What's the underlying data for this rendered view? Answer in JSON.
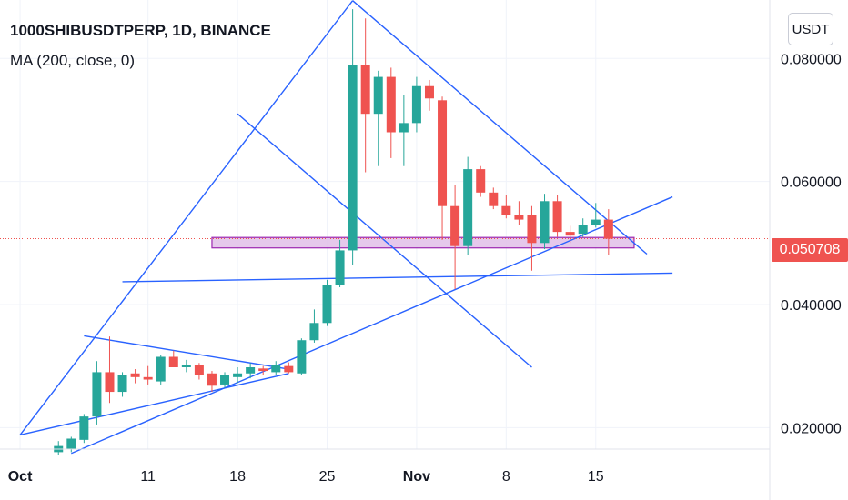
{
  "header": {
    "symbol": "1000SHIBUSDTPERP, 1D, BINANCE",
    "indicator": "MA (200, close, 0)"
  },
  "axis": {
    "unit_button": "USDT",
    "last_price_badge": "0.050708"
  },
  "colors": {
    "up": "#26a69a",
    "down": "#ef5350",
    "trendline": "#2962ff",
    "zone_fill": "#e1bee7",
    "zone_stroke": "#9c27b0",
    "grid": "#f0f3fa",
    "last_price_line": "#ef5350"
  },
  "chart_data": {
    "type": "candlestick",
    "y_range": [
      0.0165,
      0.0895
    ],
    "y_ticks": [
      "0.020000",
      "0.040000",
      "0.060000",
      "0.080000"
    ],
    "y_tick_values": [
      0.02,
      0.04,
      0.06,
      0.08
    ],
    "x_ticks": [
      {
        "label": "Oct",
        "day": 1,
        "bold": true
      },
      {
        "label": "11",
        "day": 11,
        "bold": false
      },
      {
        "label": "18",
        "day": 18,
        "bold": false
      },
      {
        "label": "25",
        "day": 25,
        "bold": false
      },
      {
        "label": "Nov",
        "day": 32,
        "bold": true
      },
      {
        "label": "8",
        "day": 39,
        "bold": false
      },
      {
        "label": "15",
        "day": 46,
        "bold": false
      }
    ],
    "last_price": 0.050708,
    "candles": [
      {
        "day": 4,
        "o": 0.016,
        "h": 0.0178,
        "l": 0.0155,
        "c": 0.017
      },
      {
        "day": 5,
        "o": 0.0165,
        "h": 0.0185,
        "l": 0.016,
        "c": 0.0182
      },
      {
        "day": 6,
        "o": 0.018,
        "h": 0.0222,
        "l": 0.0175,
        "c": 0.0218
      },
      {
        "day": 7,
        "o": 0.0218,
        "h": 0.0308,
        "l": 0.0205,
        "c": 0.029
      },
      {
        "day": 8,
        "o": 0.029,
        "h": 0.0348,
        "l": 0.024,
        "c": 0.0258
      },
      {
        "day": 9,
        "o": 0.0258,
        "h": 0.029,
        "l": 0.025,
        "c": 0.0285
      },
      {
        "day": 10,
        "o": 0.0288,
        "h": 0.0295,
        "l": 0.0272,
        "c": 0.0282
      },
      {
        "day": 11,
        "o": 0.0282,
        "h": 0.03,
        "l": 0.027,
        "c": 0.0278
      },
      {
        "day": 12,
        "o": 0.0275,
        "h": 0.0318,
        "l": 0.027,
        "c": 0.0315
      },
      {
        "day": 13,
        "o": 0.0315,
        "h": 0.0325,
        "l": 0.03,
        "c": 0.0298
      },
      {
        "day": 14,
        "o": 0.0298,
        "h": 0.031,
        "l": 0.029,
        "c": 0.0302
      },
      {
        "day": 15,
        "o": 0.0302,
        "h": 0.0305,
        "l": 0.0278,
        "c": 0.0285
      },
      {
        "day": 16,
        "o": 0.0288,
        "h": 0.0292,
        "l": 0.0258,
        "c": 0.0268
      },
      {
        "day": 17,
        "o": 0.027,
        "h": 0.029,
        "l": 0.0265,
        "c": 0.0285
      },
      {
        "day": 18,
        "o": 0.0282,
        "h": 0.0298,
        "l": 0.0272,
        "c": 0.0288
      },
      {
        "day": 19,
        "o": 0.0288,
        "h": 0.0305,
        "l": 0.028,
        "c": 0.0298
      },
      {
        "day": 20,
        "o": 0.0296,
        "h": 0.03,
        "l": 0.0285,
        "c": 0.0292
      },
      {
        "day": 21,
        "o": 0.029,
        "h": 0.0308,
        "l": 0.0286,
        "c": 0.0302
      },
      {
        "day": 22,
        "o": 0.03,
        "h": 0.0306,
        "l": 0.0288,
        "c": 0.029
      },
      {
        "day": 23,
        "o": 0.0288,
        "h": 0.0345,
        "l": 0.0285,
        "c": 0.0342
      },
      {
        "day": 24,
        "o": 0.0342,
        "h": 0.0392,
        "l": 0.0338,
        "c": 0.037
      },
      {
        "day": 25,
        "o": 0.037,
        "h": 0.044,
        "l": 0.0365,
        "c": 0.0432
      },
      {
        "day": 26,
        "o": 0.0432,
        "h": 0.0505,
        "l": 0.0428,
        "c": 0.0488
      },
      {
        "day": 27,
        "o": 0.0488,
        "h": 0.088,
        "l": 0.0465,
        "c": 0.079
      },
      {
        "day": 28,
        "o": 0.079,
        "h": 0.0865,
        "l": 0.0615,
        "c": 0.071
      },
      {
        "day": 29,
        "o": 0.071,
        "h": 0.078,
        "l": 0.0625,
        "c": 0.077
      },
      {
        "day": 30,
        "o": 0.077,
        "h": 0.0785,
        "l": 0.0638,
        "c": 0.068
      },
      {
        "day": 31,
        "o": 0.068,
        "h": 0.074,
        "l": 0.0625,
        "c": 0.0695
      },
      {
        "day": 32,
        "o": 0.0695,
        "h": 0.077,
        "l": 0.068,
        "c": 0.0755
      },
      {
        "day": 33,
        "o": 0.0755,
        "h": 0.0765,
        "l": 0.0715,
        "c": 0.0735
      },
      {
        "day": 34,
        "o": 0.0732,
        "h": 0.0738,
        "l": 0.0505,
        "c": 0.056
      },
      {
        "day": 35,
        "o": 0.056,
        "h": 0.0595,
        "l": 0.0425,
        "c": 0.0495
      },
      {
        "day": 36,
        "o": 0.0495,
        "h": 0.064,
        "l": 0.048,
        "c": 0.062
      },
      {
        "day": 37,
        "o": 0.062,
        "h": 0.0625,
        "l": 0.0575,
        "c": 0.0582
      },
      {
        "day": 38,
        "o": 0.0582,
        "h": 0.059,
        "l": 0.0555,
        "c": 0.056
      },
      {
        "day": 39,
        "o": 0.056,
        "h": 0.0578,
        "l": 0.054,
        "c": 0.0545
      },
      {
        "day": 40,
        "o": 0.0545,
        "h": 0.0568,
        "l": 0.053,
        "c": 0.0538
      },
      {
        "day": 41,
        "o": 0.0545,
        "h": 0.056,
        "l": 0.0455,
        "c": 0.05
      },
      {
        "day": 42,
        "o": 0.05,
        "h": 0.058,
        "l": 0.049,
        "c": 0.0568
      },
      {
        "day": 43,
        "o": 0.0568,
        "h": 0.0578,
        "l": 0.051,
        "c": 0.0518
      },
      {
        "day": 44,
        "o": 0.0518,
        "h": 0.0528,
        "l": 0.05,
        "c": 0.0512
      },
      {
        "day": 45,
        "o": 0.0515,
        "h": 0.054,
        "l": 0.051,
        "c": 0.053
      },
      {
        "day": 46,
        "o": 0.053,
        "h": 0.0565,
        "l": 0.0525,
        "c": 0.0538
      },
      {
        "day": 47,
        "o": 0.0538,
        "h": 0.0555,
        "l": 0.048,
        "c": 0.0507
      }
    ],
    "trendlines": [
      {
        "name": "big-triangle-left-edge",
        "from": [
          1,
          0.0188
        ],
        "to": [
          27,
          0.0894
        ]
      },
      {
        "name": "big-triangle-right-edge",
        "from": [
          27,
          0.0894
        ],
        "to": [
          50,
          0.0482
        ]
      },
      {
        "name": "diagonal-inner-line",
        "from": [
          18,
          0.071
        ],
        "to": [
          41,
          0.0298
        ]
      },
      {
        "name": "flag-top-line",
        "from": [
          6,
          0.0349
        ],
        "to": [
          22,
          0.0295
        ]
      },
      {
        "name": "flag-bottom-line",
        "from": [
          1,
          0.0188
        ],
        "to": [
          22,
          0.0288
        ]
      },
      {
        "name": "rising-support-line",
        "from": [
          5,
          0.0158
        ],
        "to": [
          52,
          0.0575
        ]
      },
      {
        "name": "horizontal-support-line",
        "from": [
          9,
          0.0437
        ],
        "to": [
          52,
          0.0451
        ]
      }
    ],
    "zone": {
      "day_start": 16,
      "day_end": 49,
      "top": 0.0509,
      "bottom": 0.0492
    }
  }
}
